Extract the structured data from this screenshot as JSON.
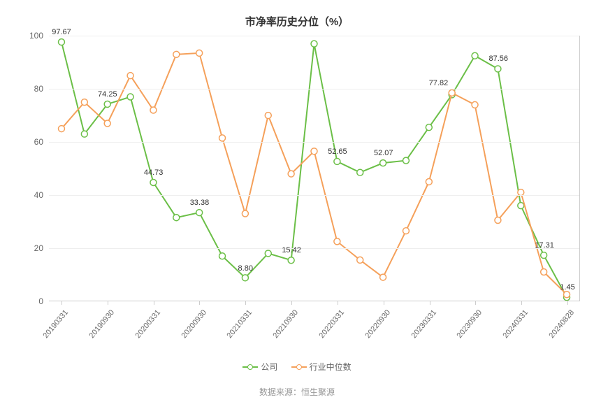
{
  "chart": {
    "type": "line",
    "title": "市净率历史分位（%）",
    "background_color": "#ffffff",
    "grid_color": "#eeeeee",
    "axis_line_color": "#cccccc",
    "text_color": "#666666",
    "label_color": "#333333",
    "title_fontsize": 15,
    "tick_fontsize": 12,
    "xlabel_fontsize": 11,
    "datalabel_fontsize": 11,
    "ylim": [
      0,
      100
    ],
    "ytick_step": 20,
    "yticks": [
      0,
      20,
      40,
      60,
      80,
      100
    ],
    "x_labels_all": [
      "20190331",
      "20190630",
      "20190930",
      "20191231",
      "20200331",
      "20200630",
      "20200930",
      "20201231",
      "20210331",
      "20210630",
      "20210930",
      "20211231",
      "20220331",
      "20220630",
      "20220930",
      "20221231",
      "20230331",
      "20230630",
      "20230930",
      "20231231",
      "20240331",
      "20240630",
      "20240828"
    ],
    "x_labels_shown": [
      "20190331",
      "20190930",
      "20200331",
      "20200930",
      "20210331",
      "20210930",
      "20220331",
      "20220930",
      "20230331",
      "20230930",
      "20240331",
      "20240828"
    ],
    "x_label_indices_shown": [
      0,
      2,
      4,
      6,
      8,
      10,
      12,
      14,
      16,
      18,
      20,
      22
    ],
    "x_label_rotation_deg": -50,
    "line_width": 2,
    "marker_radius": 4.5,
    "marker_fill": "#ffffff",
    "series": [
      {
        "name": "公司",
        "color": "#6bbf47",
        "values": [
          97.67,
          63.0,
          74.25,
          77.0,
          44.73,
          31.5,
          33.38,
          17.0,
          8.8,
          18.0,
          15.42,
          97.0,
          52.65,
          48.5,
          52.07,
          53.0,
          65.5,
          77.82,
          92.5,
          87.56,
          36.0,
          17.31,
          1.45
        ],
        "labels": [
          {
            "i": 0,
            "text": "97.67",
            "dy": -8
          },
          {
            "i": 2,
            "text": "74.25",
            "dy": -8
          },
          {
            "i": 4,
            "text": "44.73",
            "dy": -8
          },
          {
            "i": 6,
            "text": "33.38",
            "dy": -8
          },
          {
            "i": 8,
            "text": "8.80",
            "dy": -8
          },
          {
            "i": 10,
            "text": "15.42",
            "dy": -8
          },
          {
            "i": 12,
            "text": "52.65",
            "dy": -8
          },
          {
            "i": 14,
            "text": "52.07",
            "dy": -8
          },
          {
            "i": 17,
            "text": "77.82",
            "dy": -10,
            "dx": -20
          },
          {
            "i": 19,
            "text": "87.56",
            "dy": -8
          },
          {
            "i": 21,
            "text": "17.31",
            "dy": -8
          },
          {
            "i": 22,
            "text": "1.45",
            "dy": -8
          }
        ]
      },
      {
        "name": "行业中位数",
        "color": "#f5a05a",
        "values": [
          65.0,
          75.0,
          67.0,
          85.0,
          72.0,
          93.0,
          93.5,
          61.5,
          33.0,
          70.0,
          48.0,
          56.5,
          22.5,
          15.5,
          9.0,
          26.5,
          45.0,
          78.5,
          74.0,
          30.5,
          41.0,
          11.0,
          2.5
        ],
        "labels": []
      }
    ],
    "legend": {
      "items": [
        "公司",
        "行业中位数"
      ],
      "fontsize": 12
    },
    "source_label": "数据来源：恒生聚源"
  }
}
